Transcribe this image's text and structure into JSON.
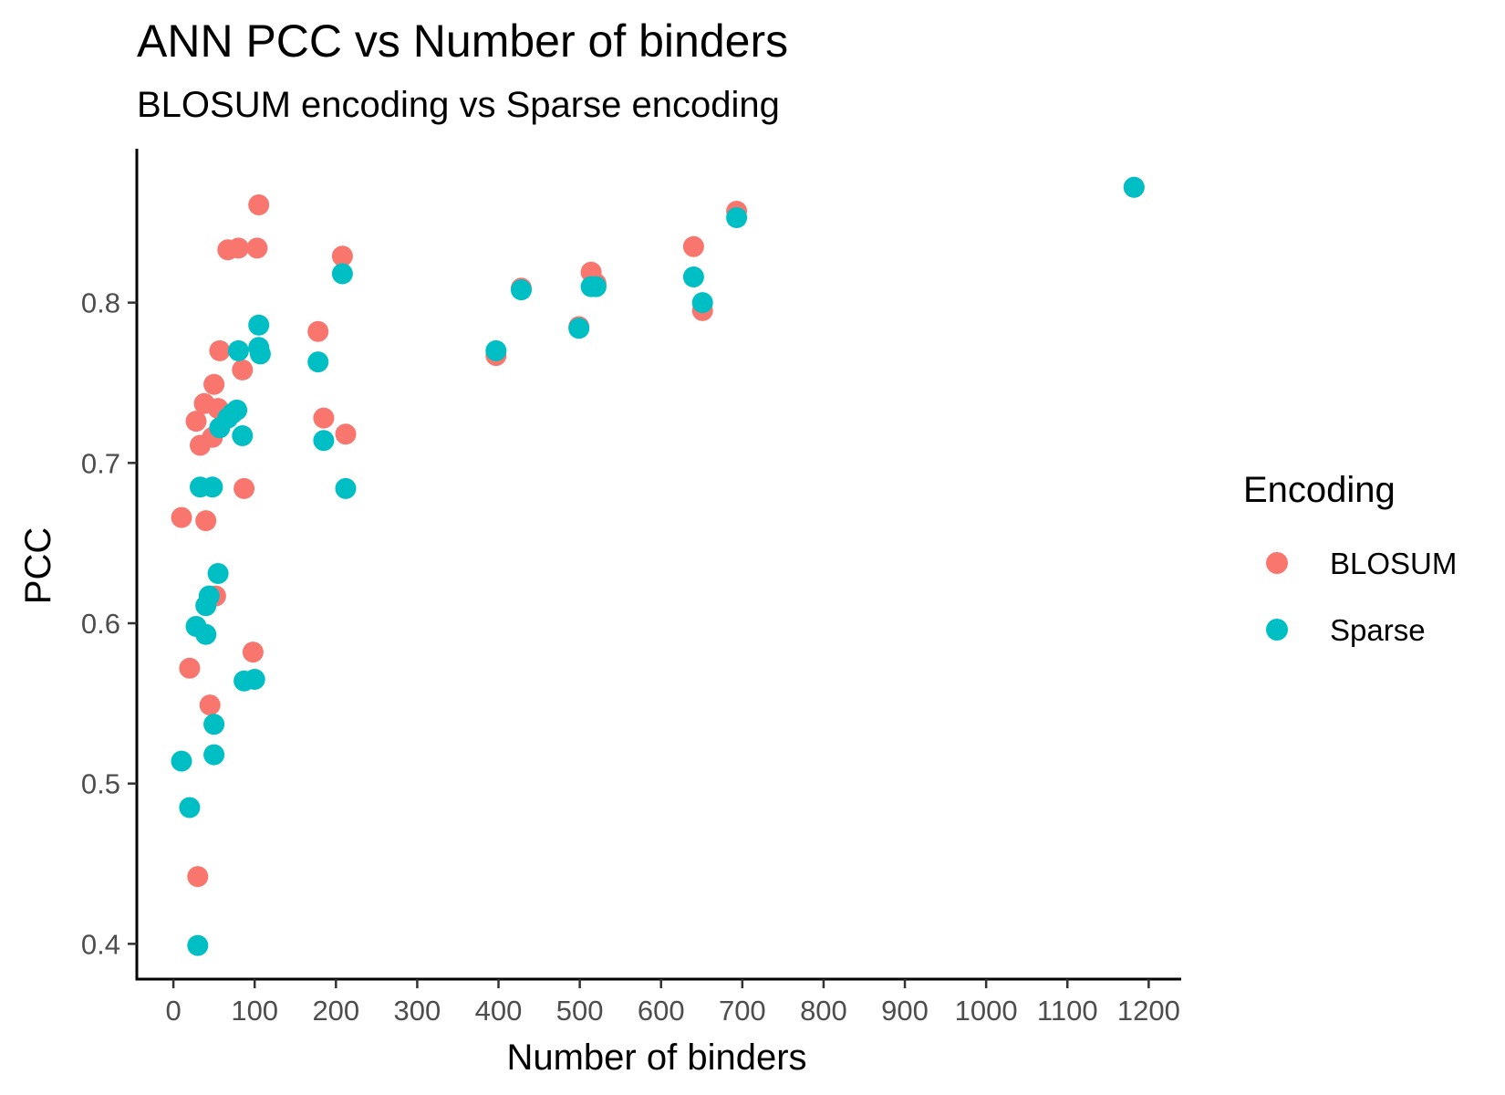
{
  "chart_data": {
    "type": "scatter",
    "title": "ANN PCC vs Number of binders",
    "subtitle": "BLOSUM encoding vs Sparse encoding",
    "xlabel": "Number of binders",
    "ylabel": "PCC",
    "xlim": [
      -45,
      1240
    ],
    "ylim": [
      0.378,
      0.896
    ],
    "x_ticks": [
      0,
      100,
      200,
      300,
      400,
      500,
      600,
      700,
      800,
      900,
      1000,
      1100,
      1200
    ],
    "y_ticks": [
      0.4,
      0.5,
      0.6,
      0.7,
      0.8
    ],
    "y_tick_labels": [
      "0.4",
      "0.5",
      "0.6",
      "0.7",
      "0.8"
    ],
    "grid": false,
    "legend": {
      "title": "Encoding",
      "position": "right"
    },
    "series": [
      {
        "name": "BLOSUM",
        "color": "#F8766D",
        "points": [
          [
            10,
            0.666
          ],
          [
            20,
            0.572
          ],
          [
            28,
            0.726
          ],
          [
            30,
            0.442
          ],
          [
            33,
            0.711
          ],
          [
            38,
            0.737
          ],
          [
            40,
            0.664
          ],
          [
            45,
            0.549
          ],
          [
            48,
            0.716
          ],
          [
            50,
            0.749
          ],
          [
            52,
            0.617
          ],
          [
            55,
            0.734
          ],
          [
            57,
            0.77
          ],
          [
            67,
            0.833
          ],
          [
            80,
            0.834
          ],
          [
            85,
            0.758
          ],
          [
            87,
            0.684
          ],
          [
            98,
            0.582
          ],
          [
            103,
            0.834
          ],
          [
            105,
            0.861
          ],
          [
            178,
            0.782
          ],
          [
            185,
            0.728
          ],
          [
            208,
            0.829
          ],
          [
            212,
            0.718
          ],
          [
            397,
            0.767
          ],
          [
            428,
            0.809
          ],
          [
            499,
            0.785
          ],
          [
            514,
            0.819
          ],
          [
            520,
            0.812
          ],
          [
            640,
            0.835
          ],
          [
            651,
            0.795
          ],
          [
            693,
            0.857
          ],
          [
            1182,
            0.872
          ]
        ]
      },
      {
        "name": "Sparse",
        "color": "#00BFC4",
        "points": [
          [
            10,
            0.514
          ],
          [
            20,
            0.485
          ],
          [
            28,
            0.598
          ],
          [
            30,
            0.399
          ],
          [
            33,
            0.685
          ],
          [
            40,
            0.611
          ],
          [
            40,
            0.593
          ],
          [
            44,
            0.617
          ],
          [
            48,
            0.685
          ],
          [
            50,
            0.537
          ],
          [
            50,
            0.518
          ],
          [
            55,
            0.631
          ],
          [
            57,
            0.722
          ],
          [
            67,
            0.728
          ],
          [
            73,
            0.731
          ],
          [
            78,
            0.733
          ],
          [
            80,
            0.77
          ],
          [
            85,
            0.717
          ],
          [
            87,
            0.564
          ],
          [
            100,
            0.565
          ],
          [
            105,
            0.786
          ],
          [
            105,
            0.772
          ],
          [
            107,
            0.768
          ],
          [
            178,
            0.763
          ],
          [
            185,
            0.714
          ],
          [
            208,
            0.818
          ],
          [
            212,
            0.684
          ],
          [
            397,
            0.77
          ],
          [
            428,
            0.808
          ],
          [
            499,
            0.784
          ],
          [
            514,
            0.81
          ],
          [
            520,
            0.81
          ],
          [
            640,
            0.816
          ],
          [
            651,
            0.8
          ],
          [
            693,
            0.853
          ],
          [
            1182,
            0.872
          ]
        ]
      }
    ]
  }
}
